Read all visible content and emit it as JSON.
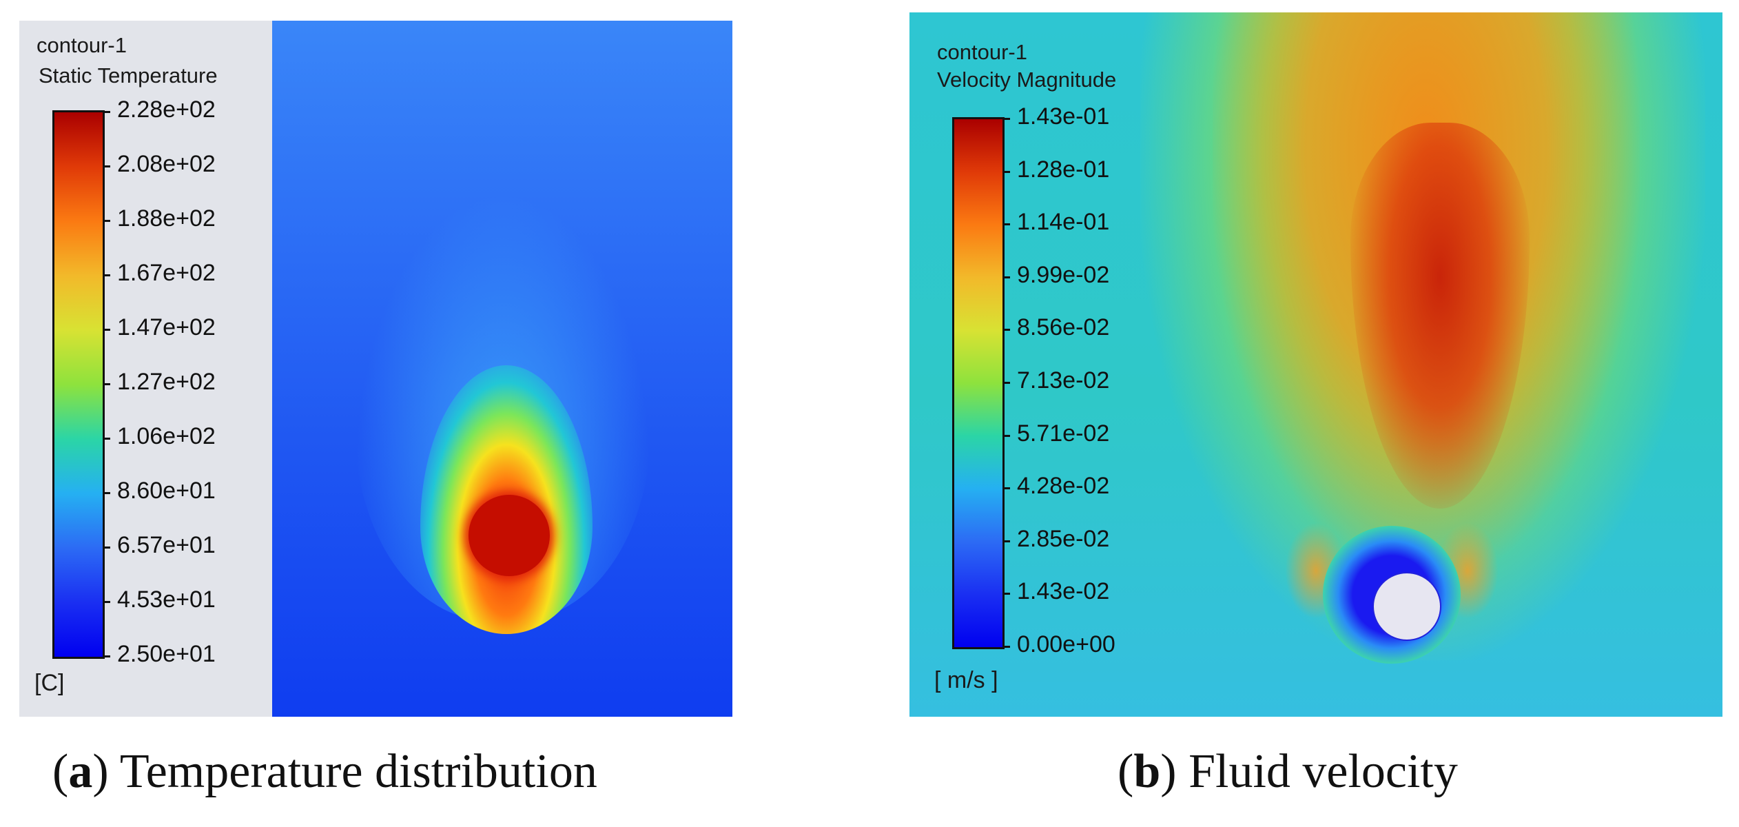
{
  "panel_a": {
    "legend_name": "contour-1",
    "legend_quantity": "Static Temperature",
    "unit": "[C]",
    "colorbar_labels": [
      "2.28e+02",
      "2.08e+02",
      "1.88e+02",
      "1.67e+02",
      "1.47e+02",
      "1.27e+02",
      "1.06e+02",
      "8.60e+01",
      "6.57e+01",
      "4.53e+01",
      "2.50e+01"
    ],
    "caption_letter": "a",
    "caption_text": "Temperature distribution"
  },
  "panel_b": {
    "legend_name": "contour-1",
    "legend_quantity": "Velocity Magnitude",
    "unit": "[ m/s ]",
    "colorbar_labels": [
      "1.43e-01",
      "1.28e-01",
      "1.14e-01",
      "9.99e-02",
      "8.56e-02",
      "7.13e-02",
      "5.71e-02",
      "4.28e-02",
      "2.85e-02",
      "1.43e-02",
      "0.00e+00"
    ],
    "caption_letter": "b",
    "caption_text": "Fluid velocity"
  },
  "colors": {
    "colormap_top": "#aa0000",
    "colormap_bottom": "#0000f0",
    "legend_background": "#e2e4ea",
    "temperature_background": "#0f4bf6",
    "velocity_background": "#2fc7cf",
    "cylinder": "#e7e6f1"
  }
}
